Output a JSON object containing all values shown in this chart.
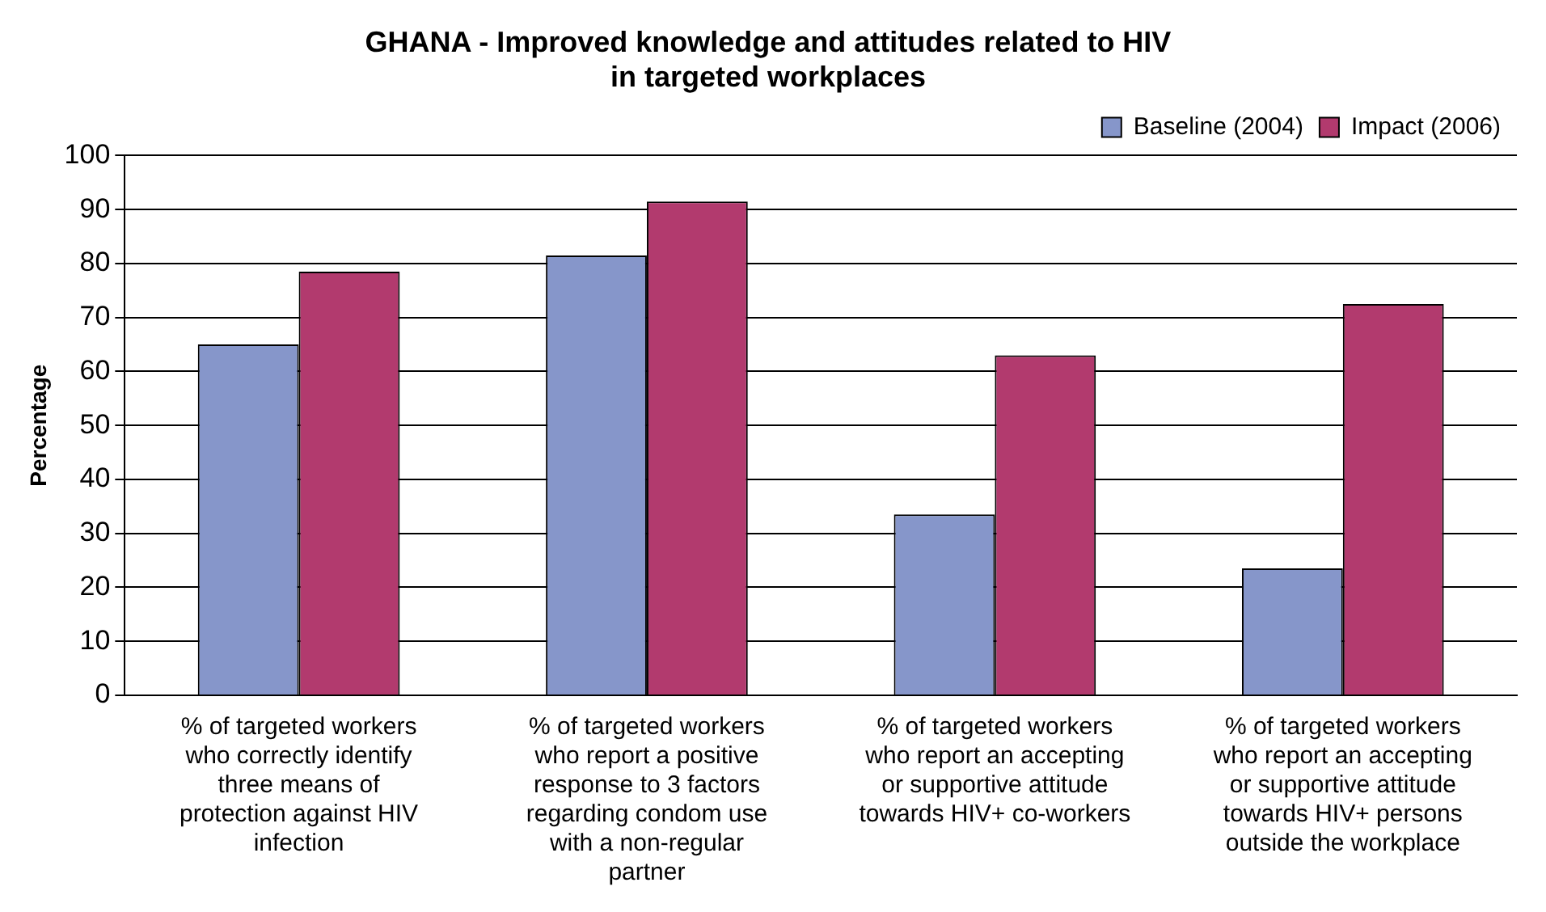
{
  "chart_data": {
    "type": "bar",
    "title": "GHANA - Improved knowledge and attitudes related to HIV in targeted workplaces",
    "ylabel": "Percentage",
    "categories": [
      "% of targeted workers who correctly identify three means of protection against HIV infection",
      "% of targeted workers who report a positive response to 3 factors regarding condom use with a non-regular partner",
      "% of targeted workers who report an accepting or supportive attitude towards HIV+ co-workers",
      "% of targeted workers who report an accepting or supportive attitude towards HIV+ persons outside the workplace"
    ],
    "series": [
      {
        "name": "Baseline (2004)",
        "color": "#8696ca",
        "values": [
          65,
          81.5,
          33.5,
          23.5
        ]
      },
      {
        "name": "Impact (2006)",
        "color": "#b23a6e",
        "values": [
          78.5,
          91.5,
          63,
          72.5
        ]
      }
    ],
    "ylim": [
      0,
      100
    ],
    "yticks": [
      0,
      10,
      20,
      30,
      40,
      50,
      60,
      70,
      80,
      90,
      100
    ],
    "grid": "y",
    "legend": "top right"
  }
}
